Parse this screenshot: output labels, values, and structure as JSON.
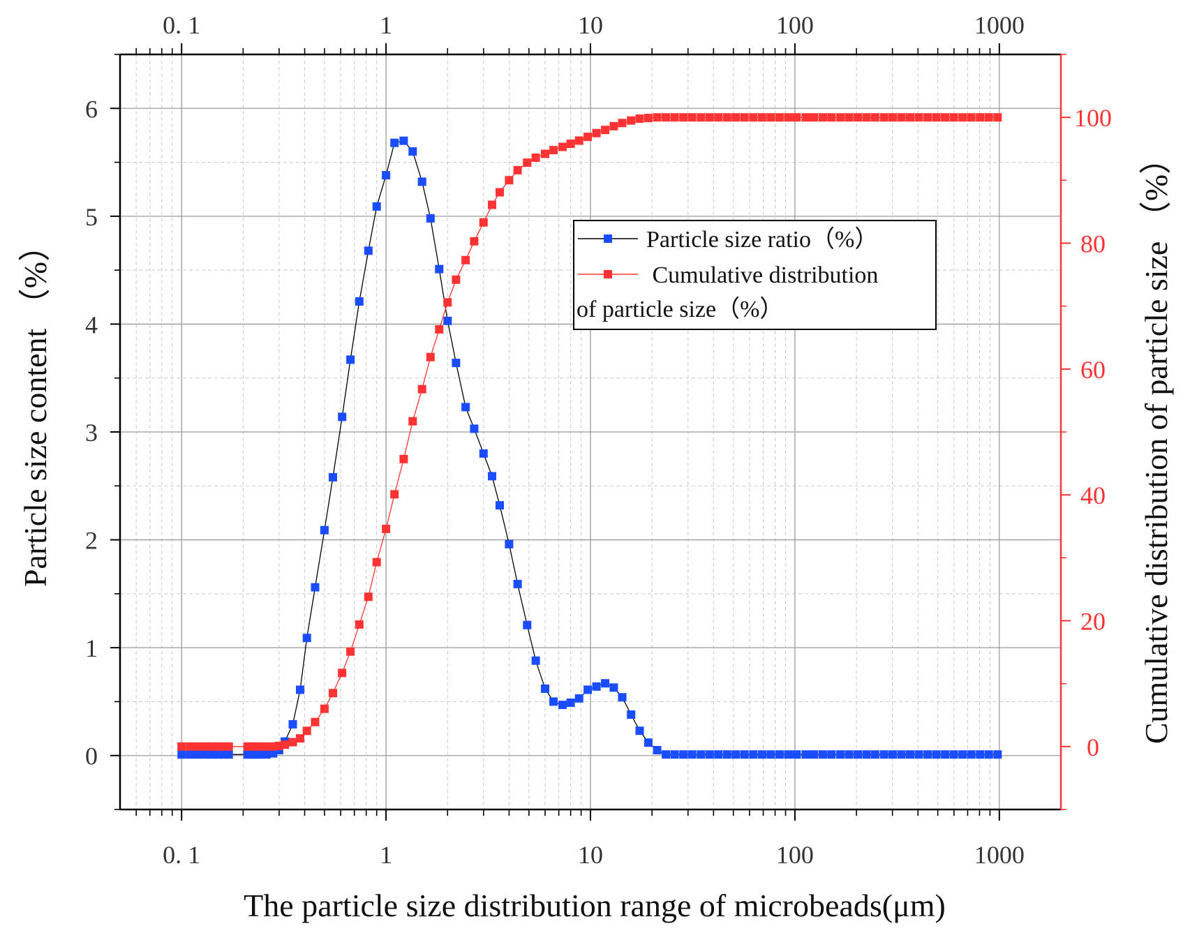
{
  "chart_data": {
    "type": "scatter",
    "xlabel": "The particle size distribution range of microbeads(μm)",
    "ylabel": "Particle size content （%）",
    "y2label": "Cumulative distribution of particle size （%）",
    "xscale": "log",
    "xlim": [
      0.05,
      2000
    ],
    "ylim": [
      -0.5,
      6.5
    ],
    "y2lim": [
      -10,
      110
    ],
    "grid": true,
    "x_ticks": [
      0.1,
      1,
      10,
      100,
      1000
    ],
    "x_tick_labels_bottom": [
      "0. 1",
      "1",
      "10",
      "100",
      "1000"
    ],
    "x_tick_labels_top": [
      "0. 1",
      "1",
      "10",
      "100",
      "1000"
    ],
    "y_ticks": [
      0,
      1,
      2,
      3,
      4,
      5,
      6
    ],
    "y_tick_labels": [
      "0",
      "1",
      "2",
      "3",
      "4",
      "5",
      "6"
    ],
    "y2_ticks": [
      0,
      20,
      40,
      60,
      80,
      100
    ],
    "y2_tick_labels": [
      "0",
      "20",
      "40",
      "60",
      "80",
      "100"
    ],
    "legend": {
      "placement": "center-right",
      "entries": [
        {
          "text": "Particle size ratio（%）",
          "color": "#1a4dff"
        },
        {
          "text": " Cumulative distribution",
          "text2": "of particle size（%）",
          "color": "#ff3333"
        }
      ]
    },
    "series": [
      {
        "name": "Particle size ratio（%）",
        "axis": "left",
        "color": "#1a4dff",
        "x": [
          0.1,
          0.11,
          0.12,
          0.13,
          0.14,
          0.15,
          0.16,
          0.17,
          0.21,
          0.22,
          0.23,
          0.24,
          0.26,
          0.28,
          0.3,
          0.32,
          0.35,
          0.38,
          0.41,
          0.45,
          0.5,
          0.55,
          0.61,
          0.67,
          0.74,
          0.82,
          0.9,
          1.0,
          1.1,
          1.22,
          1.35,
          1.5,
          1.65,
          1.82,
          2.0,
          2.2,
          2.45,
          2.7,
          3.0,
          3.3,
          3.6,
          4.0,
          4.4,
          4.9,
          5.4,
          6.0,
          6.6,
          7.3,
          8.0,
          8.8,
          9.7,
          10.7,
          11.8,
          13.0,
          14.3,
          15.8,
          17.4,
          19.2,
          21.2,
          23.4,
          25.8,
          28.5,
          31.4,
          34.7,
          38.3,
          42.2,
          46.6,
          51.4,
          56.7,
          62.6,
          69.1,
          76.2,
          84.1,
          92.8,
          102,
          113,
          124,
          137,
          151,
          167,
          184,
          203,
          224,
          247,
          273,
          301,
          332,
          366,
          404,
          446,
          492,
          543,
          599,
          661,
          729,
          805,
          888,
          980
        ],
        "values": [
          0.01,
          0.01,
          0.01,
          0.01,
          0.01,
          0.01,
          0.01,
          0.01,
          0.01,
          0.01,
          0.01,
          0.01,
          0.01,
          0.02,
          0.05,
          0.13,
          0.29,
          0.61,
          1.09,
          1.56,
          2.09,
          2.58,
          3.14,
          3.67,
          4.21,
          4.68,
          5.09,
          5.38,
          5.68,
          5.7,
          5.6,
          5.32,
          4.98,
          4.51,
          4.03,
          3.64,
          3.23,
          3.03,
          2.8,
          2.59,
          2.32,
          1.96,
          1.59,
          1.21,
          0.88,
          0.62,
          0.5,
          0.47,
          0.49,
          0.53,
          0.61,
          0.64,
          0.67,
          0.63,
          0.54,
          0.38,
          0.23,
          0.12,
          0.05,
          0.01,
          0.01,
          0.01,
          0.01,
          0.01,
          0.01,
          0.01,
          0.01,
          0.01,
          0.01,
          0.01,
          0.01,
          0.01,
          0.01,
          0.01,
          0.01,
          0.01,
          0.01,
          0.01,
          0.01,
          0.01,
          0.01,
          0.01,
          0.01,
          0.01,
          0.01,
          0.01,
          0.01,
          0.01,
          0.01,
          0.01,
          0.01,
          0.01,
          0.01,
          0.01,
          0.01,
          0.01,
          0.01,
          0.01
        ]
      },
      {
        "name": "Cumulative distribution of particle size（%）",
        "axis": "right",
        "color": "#ff3333",
        "x": [
          0.1,
          0.11,
          0.12,
          0.13,
          0.14,
          0.15,
          0.16,
          0.17,
          0.21,
          0.22,
          0.23,
          0.24,
          0.26,
          0.28,
          0.3,
          0.32,
          0.35,
          0.38,
          0.41,
          0.45,
          0.5,
          0.55,
          0.61,
          0.67,
          0.74,
          0.82,
          0.9,
          1.0,
          1.1,
          1.22,
          1.35,
          1.5,
          1.65,
          1.82,
          2.0,
          2.2,
          2.45,
          2.7,
          3.0,
          3.3,
          3.6,
          4.0,
          4.4,
          4.9,
          5.4,
          6.0,
          6.6,
          7.3,
          8.0,
          8.8,
          9.7,
          10.7,
          11.8,
          13.0,
          14.3,
          15.8,
          17.4,
          19.2,
          21.2,
          23.4,
          25.8,
          28.5,
          31.4,
          34.7,
          38.3,
          42.2,
          46.6,
          51.4,
          56.7,
          62.6,
          69.1,
          76.2,
          84.1,
          92.8,
          102,
          113,
          124,
          137,
          151,
          167,
          184,
          203,
          224,
          247,
          273,
          301,
          332,
          366,
          404,
          446,
          492,
          543,
          599,
          661,
          729,
          805,
          888,
          980
        ],
        "values": [
          0,
          0,
          0,
          0,
          0,
          0,
          0,
          0,
          0,
          0,
          0,
          0,
          0,
          0,
          0.1,
          0.3,
          0.7,
          1.3,
          2.5,
          3.9,
          6.0,
          8.5,
          11.7,
          15.1,
          19.4,
          23.8,
          29.3,
          34.6,
          40.1,
          45.7,
          51.7,
          56.8,
          61.9,
          66.3,
          70.6,
          74.2,
          77.3,
          80.3,
          83.3,
          86.1,
          88.1,
          90.0,
          91.6,
          92.8,
          93.6,
          94.2,
          94.8,
          95.3,
          95.8,
          96.3,
          96.9,
          97.5,
          98.0,
          98.6,
          99.1,
          99.5,
          99.8,
          99.9,
          100,
          100,
          100,
          100,
          100,
          100,
          100,
          100,
          100,
          100,
          100,
          100,
          100,
          100,
          100,
          100,
          100,
          100,
          100,
          100,
          100,
          100,
          100,
          100,
          100,
          100,
          100,
          100,
          100,
          100,
          100,
          100,
          100,
          100,
          100,
          100,
          100,
          100,
          100,
          100
        ]
      }
    ]
  }
}
